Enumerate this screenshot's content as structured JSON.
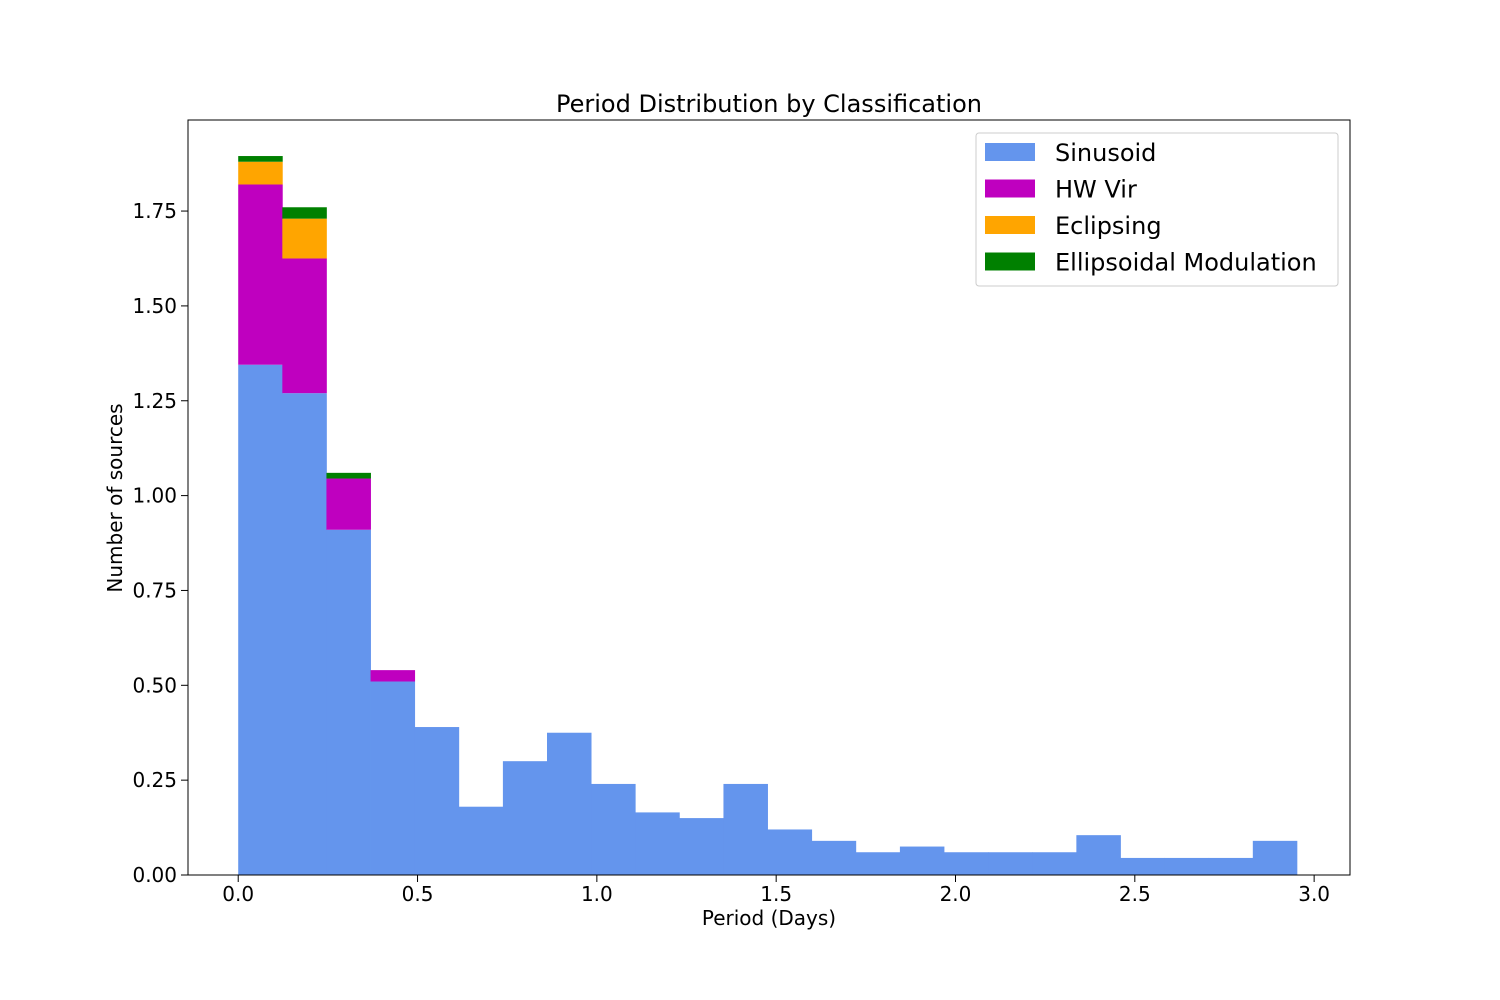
{
  "chart_data": {
    "type": "bar",
    "stacked": true,
    "title": "Period Distribution by Classification",
    "xlabel": "Period (Days)",
    "ylabel": "Number of sources",
    "xlim": [
      -0.14,
      3.1
    ],
    "ylim": [
      0,
      1.99
    ],
    "grid": false,
    "legend_position": "top-right",
    "bin_start": 0.0,
    "bin_width": 0.123,
    "xticks": [
      0.0,
      0.5,
      1.0,
      1.5,
      2.0,
      2.5,
      3.0
    ],
    "xtick_labels": [
      "0.0",
      "0.5",
      "1.0",
      "1.5",
      "2.0",
      "2.5",
      "3.0"
    ],
    "yticks": [
      0.0,
      0.25,
      0.5,
      0.75,
      1.0,
      1.25,
      1.5,
      1.75
    ],
    "ytick_labels": [
      "0.00",
      "0.25",
      "0.50",
      "0.75",
      "1.00",
      "1.25",
      "1.50",
      "1.75"
    ],
    "series": [
      {
        "name": "Sinusoid",
        "color": "#6495ED",
        "values": [
          1.345,
          1.27,
          0.91,
          0.51,
          0.39,
          0.18,
          0.3,
          0.375,
          0.24,
          0.165,
          0.15,
          0.24,
          0.12,
          0.09,
          0.06,
          0.075,
          0.06,
          0.06,
          0.06,
          0.105,
          0.045,
          0.045,
          0.045,
          0.09
        ]
      },
      {
        "name": "HW Vir",
        "color": "#BF00BF",
        "values": [
          0.475,
          0.355,
          0.135,
          0.03,
          0,
          0,
          0,
          0,
          0,
          0,
          0,
          0,
          0,
          0,
          0,
          0,
          0,
          0,
          0,
          0,
          0,
          0,
          0,
          0
        ]
      },
      {
        "name": "Eclipsing",
        "color": "#FFA500",
        "values": [
          0.06,
          0.105,
          0,
          0,
          0,
          0,
          0,
          0,
          0,
          0,
          0,
          0,
          0,
          0,
          0,
          0,
          0,
          0,
          0,
          0,
          0,
          0,
          0,
          0
        ]
      },
      {
        "name": "Ellipsoidal Modulation",
        "color": "#008000",
        "values": [
          0.015,
          0.03,
          0.015,
          0,
          0,
          0,
          0,
          0,
          0,
          0,
          0,
          0,
          0,
          0,
          0,
          0,
          0,
          0,
          0,
          0,
          0,
          0,
          0,
          0
        ]
      }
    ]
  }
}
